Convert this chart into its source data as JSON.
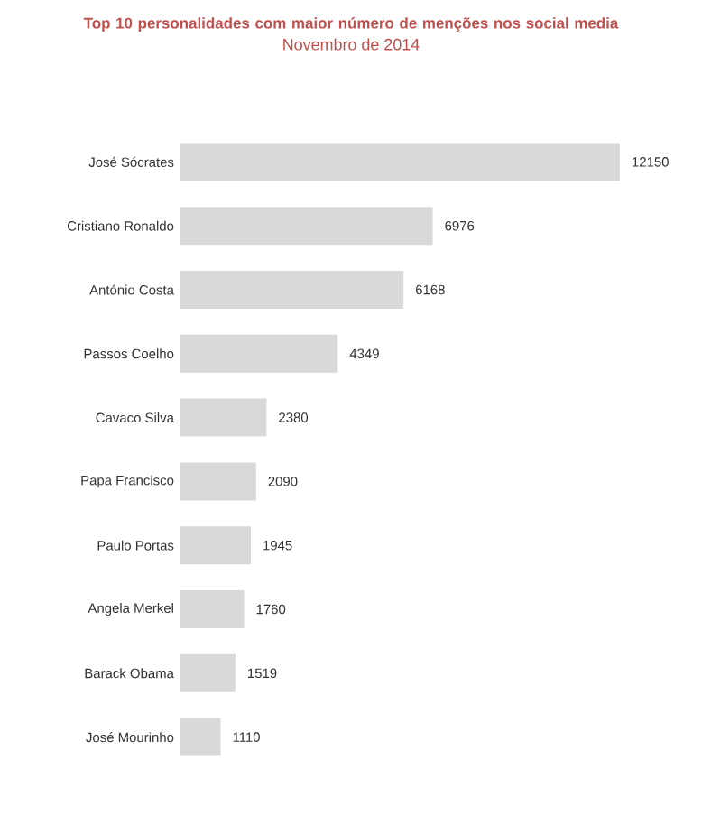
{
  "chart_data": {
    "type": "bar",
    "orientation": "horizontal",
    "title": "Top 10 personalidades com maior número de menções nos social media",
    "subtitle": "Novembro de 2014",
    "categories": [
      "José Sócrates",
      "Cristiano Ronaldo",
      "António Costa",
      "Passos Coelho",
      "Cavaco Silva",
      "Papa Francisco",
      "Paulo Portas",
      "Angela Merkel",
      "Barack Obama",
      "José Mourinho"
    ],
    "values": [
      12150,
      6976,
      6168,
      4349,
      2380,
      2090,
      1945,
      1760,
      1519,
      1110
    ],
    "color": "#d9d9d9",
    "tick_labels": "y",
    "data_labels": true
  }
}
